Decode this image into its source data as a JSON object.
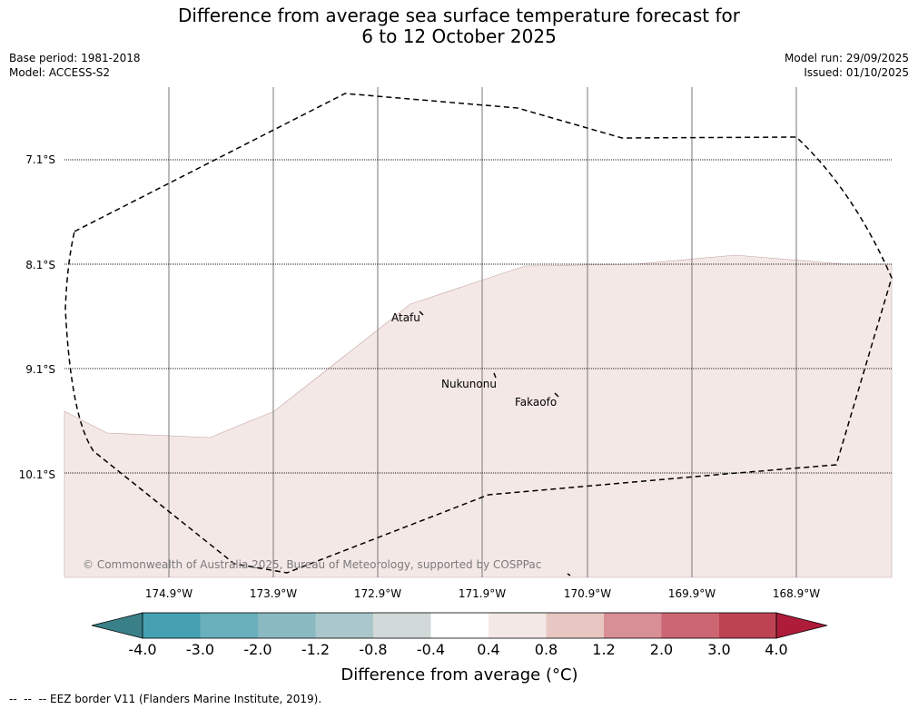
{
  "title": {
    "line1": "Difference from average sea surface temperature forecast for",
    "line2": "6 to 12 October 2025"
  },
  "meta_left": {
    "base_period": "Base period: 1981-2018",
    "model": "Model: ACCESS-S2"
  },
  "meta_right": {
    "model_run": "Model run: 29/09/2025",
    "issued": "Issued: 01/10/2025"
  },
  "map": {
    "lon_labels": [
      "174.9°W",
      "173.9°W",
      "172.9°W",
      "171.9°W",
      "170.9°W",
      "169.9°W",
      "168.9°W"
    ],
    "lat_labels": [
      "7.1°S",
      "8.1°S",
      "9.1°S",
      "10.1°S"
    ],
    "places": [
      {
        "name": "Atafu"
      },
      {
        "name": "Nukunonu"
      },
      {
        "name": "Fakaofo"
      }
    ],
    "copyright": "© Commonwealth of Australia 2025, Bureau of Meteorology, supported by COSPPac",
    "anomaly_fill_color": "#f4e8e6",
    "eez_line_color": "#000000"
  },
  "colorbar": {
    "tick_labels": [
      "-4.0",
      "-3.0",
      "-2.0",
      "-1.2",
      "-0.8",
      "-0.4",
      "0.4",
      "0.8",
      "1.2",
      "2.0",
      "3.0",
      "4.0"
    ],
    "colors": [
      "#45a1b1",
      "#6aafbc",
      "#8ab9c2",
      "#aac7cb",
      "#d2dad9",
      "#ffffff",
      "#f4e8e6",
      "#e8c7c3",
      "#d88f96",
      "#cc6672",
      "#bd4352"
    ],
    "under_color": "#3a8088",
    "over_color": "#ae1c3a",
    "label": "Difference from average (°C)"
  },
  "footer": "--  --  -- EEZ border V11 (Flanders Marine Institute, 2019)."
}
